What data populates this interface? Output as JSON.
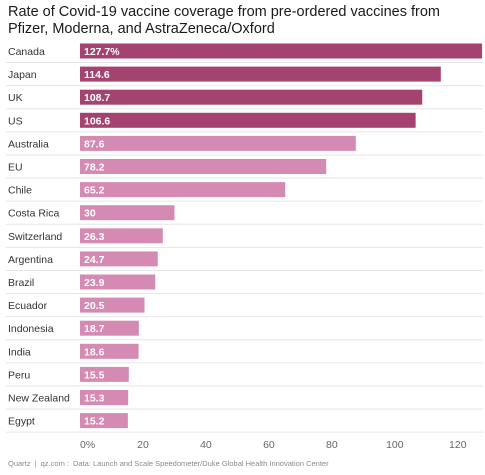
{
  "title": "Rate of Covid-19 vaccine coverage from pre-ordered vaccines from Pfizer, Moderna, and AstraZeneca/Oxford",
  "footer": {
    "brand": "Quartz",
    "site": "qz.com",
    "source": "Data: Launch and Scale Speedometer/Duke Global Health Innovation Center"
  },
  "colors": {
    "dark_bar": "#a4436f",
    "light_bar": "#d48ab2",
    "row_line": "#e6e6e6",
    "label_text": "#333333",
    "value_text": "#ffffff"
  },
  "chart_data": {
    "type": "bar",
    "orientation": "horizontal",
    "categories": [
      "Canada",
      "Japan",
      "UK",
      "US",
      "Australia",
      "EU",
      "Chile",
      "Costa Rica",
      "Switzerland",
      "Argentina",
      "Brazil",
      "Ecuador",
      "Indonesia",
      "India",
      "Peru",
      "New Zealand",
      "Egypt"
    ],
    "values": [
      127.7,
      114.6,
      108.7,
      106.6,
      87.6,
      78.2,
      65.2,
      30,
      26.3,
      24.7,
      23.9,
      20.5,
      18.7,
      18.6,
      15.5,
      15.3,
      15.2
    ],
    "value_labels": [
      "127.7%",
      "114.6",
      "108.7",
      "106.6",
      "87.6",
      "78.2",
      "65.2",
      "30",
      "26.3",
      "24.7",
      "23.9",
      "20.5",
      "18.7",
      "18.6",
      "15.5",
      "15.3",
      "15.2"
    ],
    "highlighted": [
      "dark",
      "dark",
      "dark",
      "dark",
      "light",
      "light",
      "light",
      "light",
      "light",
      "light",
      "light",
      "light",
      "light",
      "light",
      "light",
      "light",
      "light"
    ],
    "xticks": [
      "0%",
      "20",
      "40",
      "60",
      "80",
      "100",
      "120"
    ],
    "xtick_values": [
      0,
      20,
      40,
      60,
      80,
      100,
      120
    ],
    "xlim": [
      0,
      128
    ],
    "grid": false,
    "legend": "none"
  }
}
